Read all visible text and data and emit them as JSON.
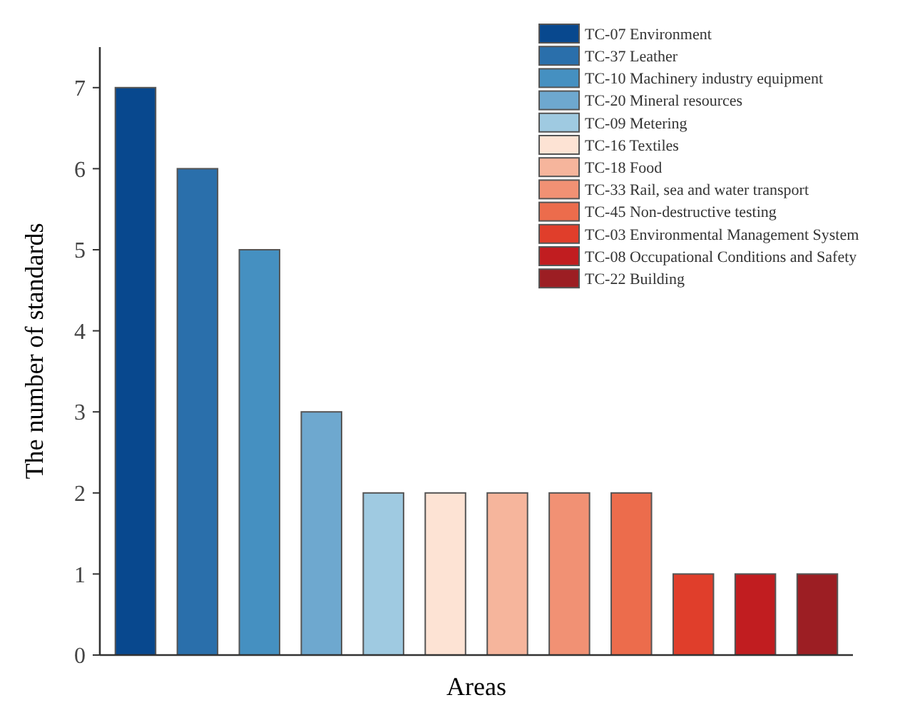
{
  "chart_data": {
    "type": "bar",
    "xlabel": "Areas",
    "ylabel": "The number of standards",
    "categories": [
      null,
      null,
      null,
      null,
      null,
      null,
      null,
      null,
      null,
      null,
      null,
      null
    ],
    "ylim": [
      0,
      7.5
    ],
    "yticks": [
      0,
      1,
      2,
      3,
      4,
      5,
      6,
      7
    ],
    "legend": "top right",
    "grid": false,
    "series": [
      {
        "name": "TC-07 Environment",
        "color": "#08488e",
        "values": [
          7,
          null,
          null,
          null,
          null,
          null,
          null,
          null,
          null,
          null,
          null,
          null
        ]
      },
      {
        "name": "TC-37 Leather",
        "color": "#2a6fab",
        "values": [
          null,
          6,
          null,
          null,
          null,
          null,
          null,
          null,
          null,
          null,
          null,
          null
        ]
      },
      {
        "name": "TC-10 Machinery industry equipment",
        "color": "#4590c1",
        "values": [
          null,
          null,
          5,
          null,
          null,
          null,
          null,
          null,
          null,
          null,
          null,
          null
        ]
      },
      {
        "name": "TC-20 Mineral resources",
        "color": "#6ea8cf",
        "values": [
          null,
          null,
          null,
          3,
          null,
          null,
          null,
          null,
          null,
          null,
          null,
          null
        ]
      },
      {
        "name": "TC-09 Metering",
        "color": "#9fcae1",
        "values": [
          null,
          null,
          null,
          null,
          2,
          null,
          null,
          null,
          null,
          null,
          null,
          null
        ]
      },
      {
        "name": "TC-16 Textiles",
        "color": "#fde3d4",
        "values": [
          null,
          null,
          null,
          null,
          null,
          2,
          null,
          null,
          null,
          null,
          null,
          null
        ]
      },
      {
        "name": "TC-18 Food",
        "color": "#f6b59c",
        "values": [
          null,
          null,
          null,
          null,
          null,
          null,
          2,
          null,
          null,
          null,
          null,
          null
        ]
      },
      {
        "name": "TC-33 Rail, sea and water transport",
        "color": "#f19174",
        "values": [
          null,
          null,
          null,
          null,
          null,
          null,
          null,
          2,
          null,
          null,
          null,
          null
        ]
      },
      {
        "name": "TC-45 Non-destructive testing",
        "color": "#ec6c4c",
        "values": [
          null,
          null,
          null,
          null,
          null,
          null,
          null,
          null,
          2,
          null,
          null,
          null
        ]
      },
      {
        "name": "TC-03 Environmental Management System",
        "color": "#e03e2b",
        "values": [
          null,
          null,
          null,
          null,
          null,
          null,
          null,
          null,
          null,
          1,
          null,
          null
        ]
      },
      {
        "name": "TC-08 Occupational Conditions and Safety",
        "color": "#c11d20",
        "values": [
          null,
          null,
          null,
          null,
          null,
          null,
          null,
          null,
          null,
          null,
          1,
          null
        ]
      },
      {
        "name": "TC-22 Building",
        "color": "#9c1e23",
        "values": [
          null,
          null,
          null,
          null,
          null,
          null,
          null,
          null,
          null,
          null,
          null,
          1
        ]
      }
    ]
  }
}
